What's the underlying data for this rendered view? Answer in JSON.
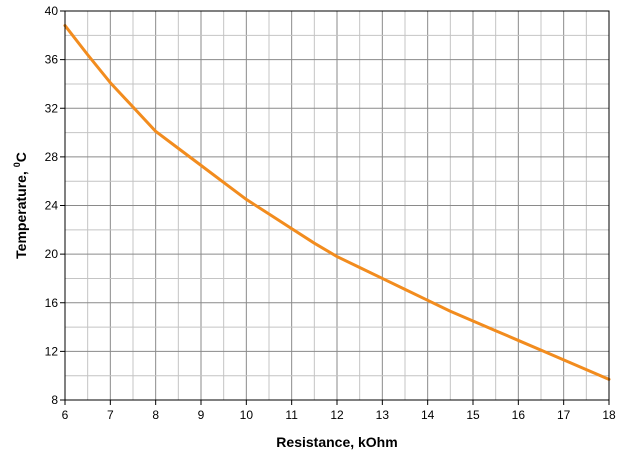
{
  "chart_data": {
    "type": "line",
    "xlabel": "Resistance, kOhm",
    "ylabel": "Temperature, ",
    "ylabel_superscript": "0",
    "ylabel_unit": "C",
    "xlim": [
      6,
      18
    ],
    "ylim": [
      8,
      40
    ],
    "x_ticks": [
      "6",
      "7",
      "8",
      "9",
      "10",
      "11",
      "12",
      "13",
      "14",
      "15",
      "16",
      "17",
      "18"
    ],
    "y_ticks": [
      "8",
      "12",
      "16",
      "20",
      "24",
      "28",
      "32",
      "36",
      "40"
    ],
    "x_minor_step": 0.5,
    "y_minor_step": 2,
    "grid": true,
    "series": [
      {
        "color": "#F28C1E",
        "x": [
          6,
          6.5,
          7,
          7.5,
          8,
          8.5,
          9,
          9.5,
          10,
          10.5,
          11,
          11.5,
          12,
          12.5,
          13,
          13.5,
          14,
          14.5,
          15,
          15.5,
          16,
          16.5,
          17,
          17.5,
          18
        ],
        "y": [
          38.8,
          36.4,
          34.1,
          32.1,
          30.1,
          28.7,
          27.3,
          25.9,
          24.5,
          23.3,
          22.1,
          20.9,
          19.8,
          18.9,
          18.0,
          17.1,
          16.2,
          15.3,
          14.5,
          13.7,
          12.9,
          12.1,
          11.3,
          10.5,
          9.7
        ]
      }
    ]
  }
}
